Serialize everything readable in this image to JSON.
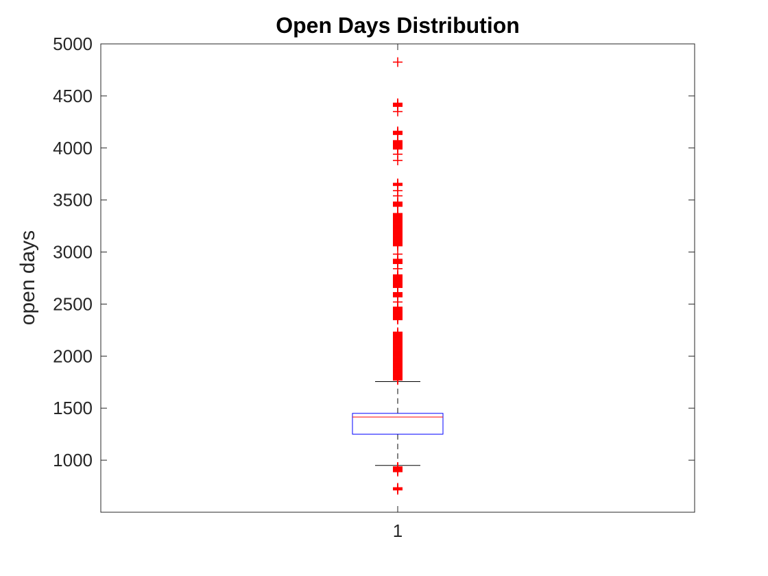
{
  "chart_data": {
    "type": "box",
    "title": "Open Days Distribution",
    "xlabel": "",
    "ylabel": "open days",
    "ylim": [
      500,
      5000
    ],
    "yticks": [
      1000,
      1500,
      2000,
      2500,
      3000,
      3500,
      4000,
      4500,
      5000
    ],
    "categories": [
      "1"
    ],
    "box": {
      "q1": 1250,
      "median": 1415,
      "q3": 1450,
      "whisker_low": 950,
      "whisker_high": 1755
    },
    "outliers": [
      4825,
      4430,
      4400,
      4350,
      4160,
      4130,
      4070,
      4030,
      3990,
      3940,
      3880,
      3660,
      3640,
      3590,
      3540,
      3480,
      3440,
      3370,
      3340,
      3300,
      3260,
      3220,
      3180,
      3140,
      3100,
      3060,
      2980,
      2930,
      2890,
      2840,
      2780,
      2740,
      2700,
      2660,
      2610,
      2570,
      2520,
      2470,
      2430,
      2390,
      2350,
      2230,
      2190,
      2150,
      2110,
      2070,
      2030,
      1990,
      1950,
      1910,
      1870,
      1830,
      1790,
      1770,
      935,
      910,
      890,
      735,
      715
    ],
    "colors": {
      "box": "#0000ff",
      "median": "#ff0000",
      "outlier": "#ff0000",
      "whisker": "#000000",
      "axis": "#262626"
    },
    "grid": false,
    "legend": "none"
  }
}
